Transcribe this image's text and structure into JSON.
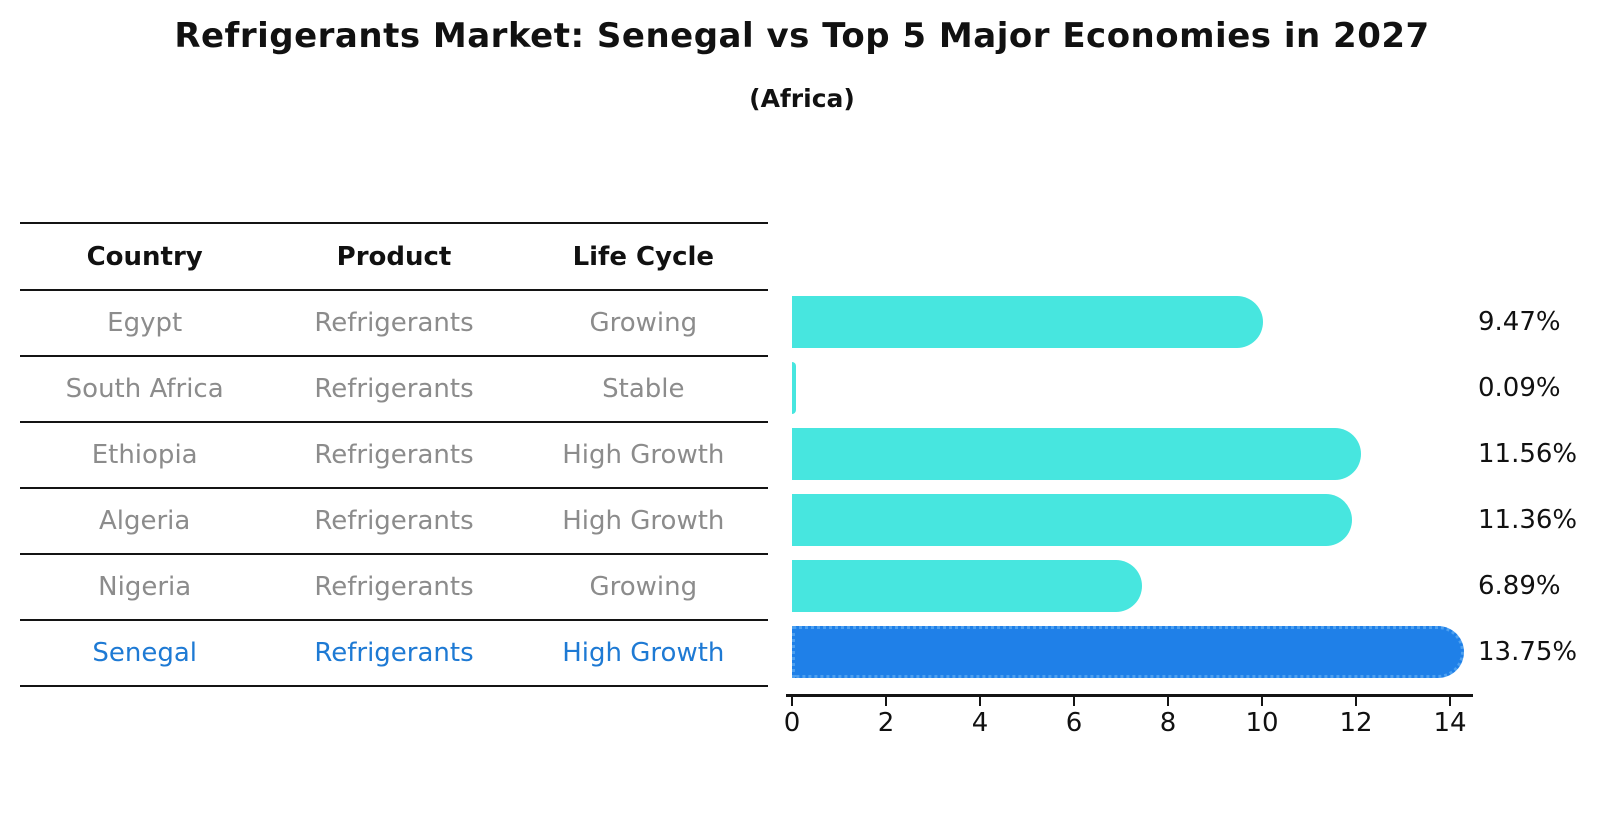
{
  "title": "Refrigerants Market: Senegal vs Top 5 Major Economies in 2027",
  "subtitle": "(Africa)",
  "table": {
    "headers": [
      "Country",
      "Product",
      "Life Cycle"
    ],
    "highlight_row_index": 5,
    "rows": [
      {
        "country": "Egypt",
        "product": "Refrigerants",
        "life_cycle": "Growing"
      },
      {
        "country": "South Africa",
        "product": "Refrigerants",
        "life_cycle": "Stable"
      },
      {
        "country": "Ethiopia",
        "product": "Refrigerants",
        "life_cycle": "High Growth"
      },
      {
        "country": "Algeria",
        "product": "Refrigerants",
        "life_cycle": "High Growth"
      },
      {
        "country": "Nigeria",
        "product": "Refrigerants",
        "life_cycle": "Growing"
      },
      {
        "country": "Senegal",
        "product": "Refrigerants",
        "life_cycle": "High Growth"
      }
    ]
  },
  "chart_data": {
    "type": "bar",
    "orientation": "horizontal",
    "title": "Refrigerants Market: Senegal vs Top 5 Major Economies in 2027",
    "subtitle": "(Africa)",
    "categories": [
      "Egypt",
      "South Africa",
      "Ethiopia",
      "Algeria",
      "Nigeria",
      "Senegal"
    ],
    "values": [
      9.47,
      0.09,
      11.56,
      11.36,
      6.89,
      13.75
    ],
    "value_labels": [
      "9.47%",
      "0.09%",
      "11.56%",
      "11.36%",
      "6.89%",
      "13.75%"
    ],
    "x_ticks": [
      0,
      2,
      4,
      6,
      8,
      10,
      12,
      14
    ],
    "x_tick_labels": [
      "0",
      "2",
      "4",
      "6",
      "8",
      "10",
      "12",
      "14"
    ],
    "xlim": [
      0,
      14.5
    ],
    "grid": "off",
    "legend": "none",
    "highlight_index": 5,
    "bar_color": "#47e6df",
    "highlight_bar_color": "#1f80e8",
    "highlight_text_color": "#1e7ad4"
  }
}
